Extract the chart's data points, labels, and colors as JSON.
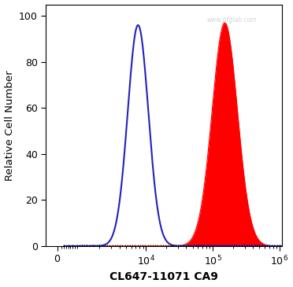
{
  "xlabel": "CL647-11071 CA9",
  "ylabel": "Relative Cell Number",
  "ylim": [
    0,
    105
  ],
  "yticks": [
    0,
    20,
    40,
    60,
    80,
    100
  ],
  "blue_peak_log": 3.88,
  "blue_peak_height": 96,
  "blue_sigma": 0.155,
  "red_peak_log": 5.18,
  "red_peak_height": 97,
  "red_sigma": 0.19,
  "blue_color": "#2222bb",
  "red_color": "#ff0000",
  "red_fill_color": "#ff0000",
  "background_color": "#ffffff",
  "watermark": "www.ptglab.com",
  "figsize": [
    3.72,
    3.65
  ],
  "dpi": 100,
  "linthresh": 1000,
  "xlim": [
    -500,
    1100000
  ]
}
